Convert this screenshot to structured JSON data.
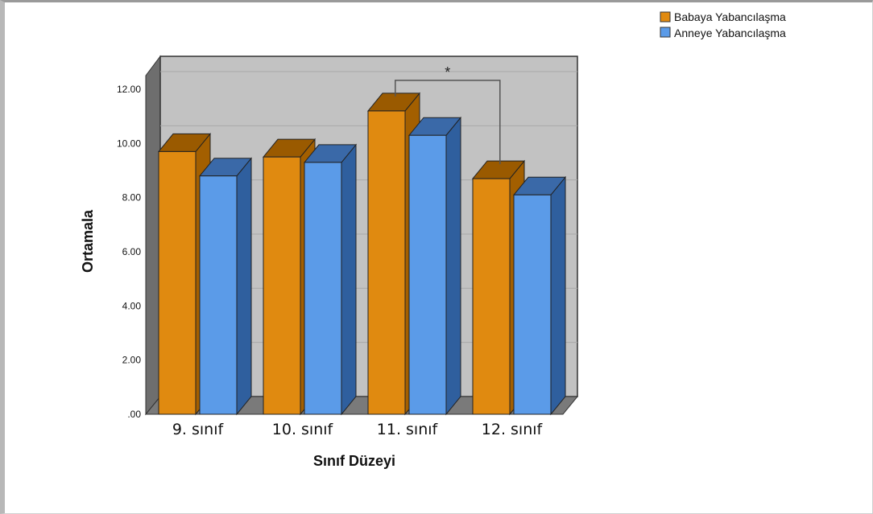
{
  "chart_data": {
    "type": "bar",
    "title": "",
    "xlabel": "Sınıf Düzeyi",
    "ylabel": "Ortamala",
    "categories": [
      "9. sınıf",
      "10. sınıf",
      "11. sınıf",
      "12. sınıf"
    ],
    "series": [
      {
        "name": "Babaya Yabancılaşma",
        "values": [
          9.7,
          9.5,
          11.2,
          8.7
        ],
        "color": "#e08a10"
      },
      {
        "name": "Anneye Yabancılaşma",
        "values": [
          8.8,
          9.3,
          10.3,
          8.1
        ],
        "color": "#5b9be8"
      }
    ],
    "yticks": [
      ".00",
      "2.00",
      "4.00",
      "6.00",
      "8.00",
      "10.00",
      "12.00"
    ],
    "ylim": [
      0,
      12.6
    ],
    "grid": true,
    "legend": "top-right",
    "annotation": {
      "text": "*",
      "between": [
        "11. sınıf",
        "12. sınıf"
      ],
      "series": "Babaya Yabancılaşma"
    }
  }
}
